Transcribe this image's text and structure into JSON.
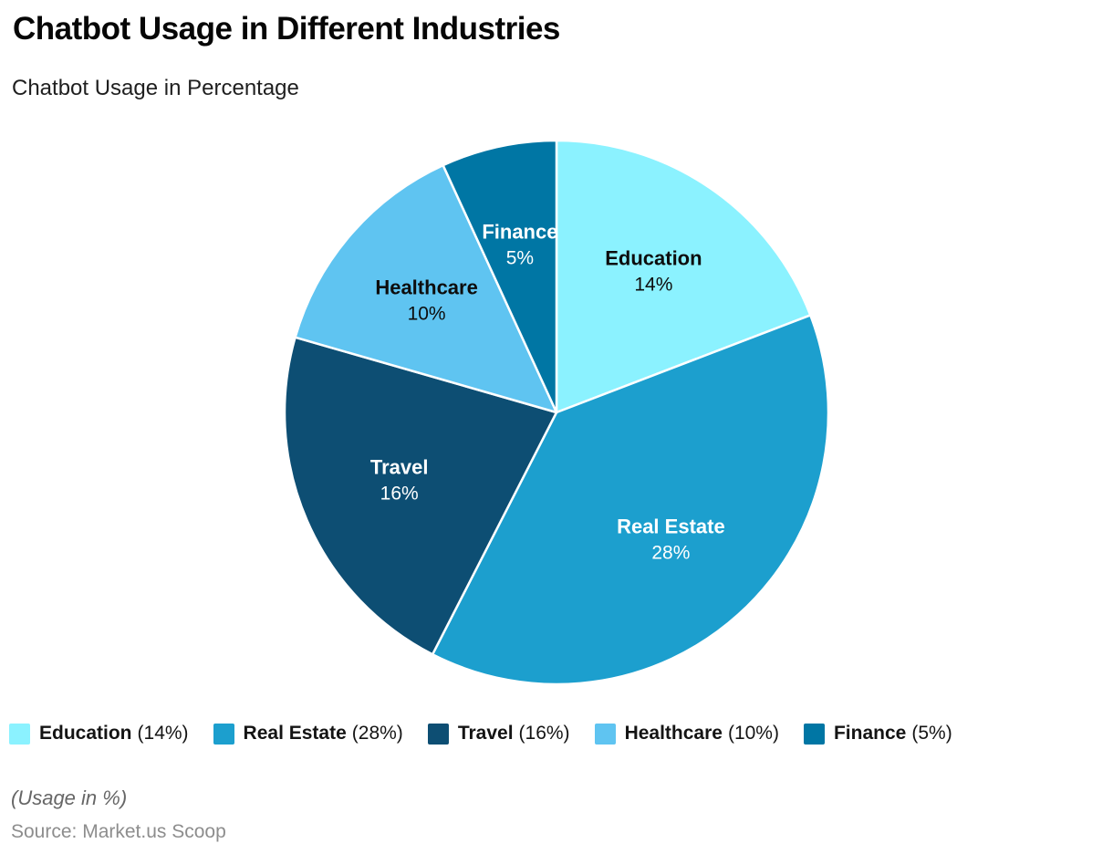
{
  "header": {
    "title": "Chatbot Usage in Different Industries",
    "subtitle": "Chatbot Usage in Percentage"
  },
  "chart_data": {
    "type": "pie",
    "title": "Chatbot Usage in Different Industries",
    "subtitle": "Chatbot Usage in Percentage",
    "start_angle": "top",
    "direction": "clockwise",
    "values_sum": 73,
    "legend_position": "bottom",
    "slice_stroke_color": "#ffffff",
    "label_radius_fraction": 0.63,
    "slices": [
      {
        "label": "Education",
        "value": 14,
        "display": "14%",
        "pct_label": "(14%)",
        "color": "#8BF2FF",
        "label_color": "#0d0d0d"
      },
      {
        "label": "Real Estate",
        "value": 28,
        "display": "28%",
        "pct_label": "(28%)",
        "color": "#1C9FCE",
        "label_color": "#ffffff"
      },
      {
        "label": "Travel",
        "value": 16,
        "display": "16%",
        "pct_label": "(16%)",
        "color": "#0D4E73",
        "label_color": "#ffffff"
      },
      {
        "label": "Healthcare",
        "value": 10,
        "display": "10%",
        "pct_label": "(10%)",
        "color": "#5FC4F1",
        "label_color": "#0d0d0d"
      },
      {
        "label": "Finance",
        "value": 5,
        "display": "5%",
        "pct_label": "(5%)",
        "color": "#0076A4",
        "label_color": "#ffffff"
      }
    ]
  },
  "footer": {
    "units_note": "(Usage in %)",
    "source": "Source: Market.us Scoop"
  }
}
